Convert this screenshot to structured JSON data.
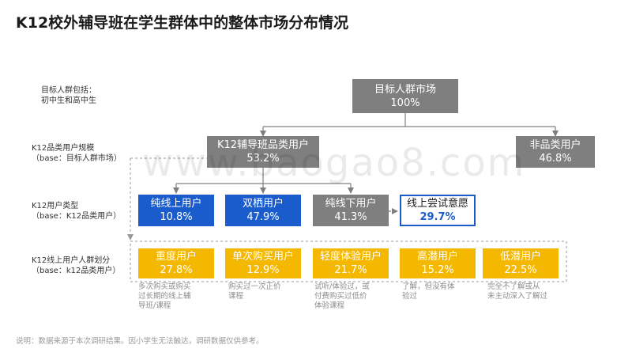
{
  "title": "K12校外辅导班在学生群体中的整体市场分布情况",
  "row_labels": {
    "target": [
      "目标人群包括：",
      "初中生和高中生"
    ],
    "category": [
      "K12品类用户规模",
      "（base：目标人群市场）"
    ],
    "usertype": [
      "K12用户类型",
      "（base：K12品类用户）"
    ],
    "online": [
      "K12线上用户人群划分",
      "（base：k12品类用户）"
    ]
  },
  "nodes": {
    "target_market": {
      "label": "目标人群市场",
      "value": "100%"
    },
    "k12_category": {
      "label": "K12辅导班品类用户",
      "value": "53.2%"
    },
    "non_category": {
      "label": "非品类用户",
      "value": "46.8%"
    },
    "pure_online": {
      "label": "纯线上用户",
      "value": "10.8%"
    },
    "dual": {
      "label": "双栖用户",
      "value": "47.9%"
    },
    "pure_offline": {
      "label": "纯线下用户",
      "value": "41.3%"
    },
    "online_try": {
      "label": "线上尝试意愿",
      "value": "29.7%"
    }
  },
  "segments": [
    {
      "label": "重度用户",
      "value": "27.8%",
      "note": [
        "多次购买或购买",
        "过长期的线上辅",
        "导班/课程"
      ]
    },
    {
      "label": "单次购买用户",
      "value": "12.9%",
      "note": [
        "购买过一次正价",
        "课程"
      ]
    },
    {
      "label": "轻度体验用户",
      "value": "21.7%",
      "note": [
        "试听/体验过，或",
        "付费购买过低价",
        "体验课程"
      ]
    },
    {
      "label": "高潜用户",
      "value": "15.2%",
      "note": [
        "了解，但没有体",
        "验过"
      ]
    },
    {
      "label": "低潜用户",
      "value": "22.5%",
      "note": [
        "完全不了解或从",
        "未主动深入了解过"
      ]
    }
  ],
  "footer": "说明：数据来源于本次调研结果。因小学生无法触达，调研数据仅供参考。",
  "watermark": "www.baogao8.com",
  "colors": {
    "gray": "#7f7f7f",
    "blue": "#1a5ccc",
    "yellow": "#f5b800",
    "outline": "#1a5ccc"
  }
}
